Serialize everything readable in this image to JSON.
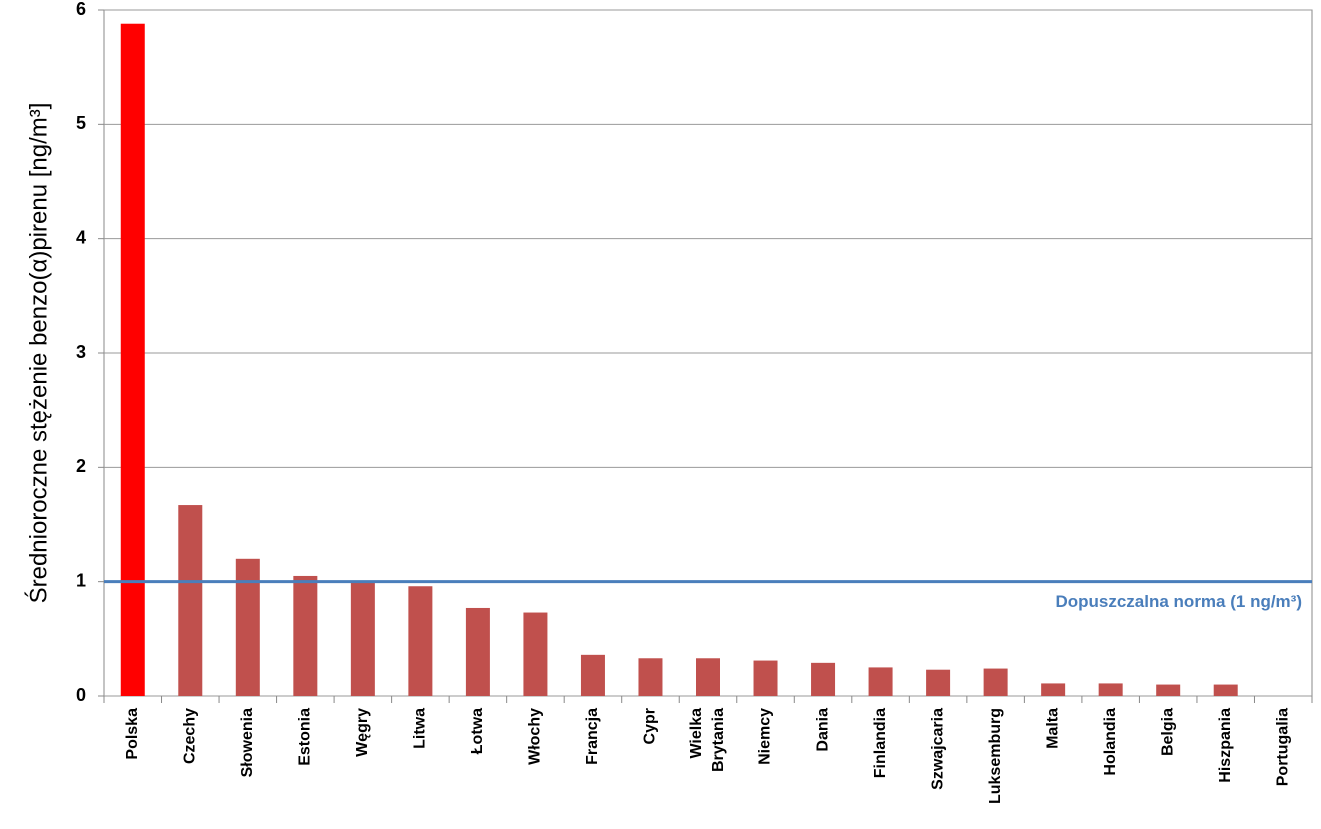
{
  "chart_data": {
    "type": "bar",
    "y_label": "Średnioroczne stężenie benzo(α)pirenu [ng/m³]",
    "categories": [
      "Polska",
      "Czechy",
      "Słowenia",
      "Estonia",
      "Węgry",
      "Litwa",
      "Łotwa",
      "Włochy",
      "Francja",
      "Cypr",
      "Wielka Brytania",
      "Niemcy",
      "Dania",
      "Finlandia",
      "Szwajcaria",
      "Luksemburg",
      "Malta",
      "Holandia",
      "Belgia",
      "Hiszpania",
      "Portugalia"
    ],
    "values": [
      5.88,
      1.67,
      1.2,
      1.05,
      1.01,
      0.96,
      0.77,
      0.73,
      0.36,
      0.33,
      0.33,
      0.31,
      0.29,
      0.25,
      0.23,
      0.24,
      0.11,
      0.11,
      0.1,
      0.1,
      0
    ],
    "colors": [
      "#ff0000",
      "#c0504d",
      "#c0504d",
      "#c0504d",
      "#c0504d",
      "#c0504d",
      "#c0504d",
      "#c0504d",
      "#c0504d",
      "#c0504d",
      "#c0504d",
      "#c0504d",
      "#c0504d",
      "#c0504d",
      "#c0504d",
      "#c0504d",
      "#c0504d",
      "#c0504d",
      "#c0504d",
      "#c0504d",
      "#c0504d"
    ],
    "ylim": [
      0,
      6
    ],
    "yticks": [
      0,
      1,
      2,
      3,
      4,
      5,
      6
    ],
    "grid": true,
    "reference_line": {
      "value": 1,
      "label": "Dopuszczalna norma (1 ng/m³)",
      "color": "#4a7ebb"
    }
  }
}
